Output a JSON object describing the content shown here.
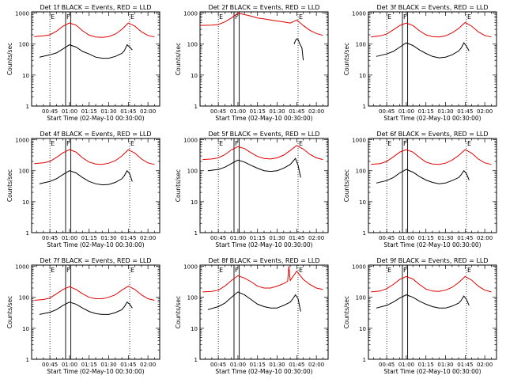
{
  "figure": {
    "background": "#ffffff",
    "colors": {
      "events": "#000000",
      "lld": "#e00000",
      "axis": "#000000"
    },
    "shared": {
      "ylabel": "Counts/sec",
      "xlabel": "Start Time (02-May-10 00:30:00)",
      "x_ticklabels": [
        "00:45",
        "01:00",
        "01:15",
        "01:30",
        "01:45",
        "02:00"
      ],
      "y_ticklabels": [
        "1",
        "10",
        "100",
        "1000"
      ],
      "markers": [
        "E",
        "F",
        "E"
      ]
    }
  },
  "chart_data": [
    {
      "type": "line",
      "title": "Det 1f BLACK = Events, RED = LLD",
      "xlabel": "Start Time (02-May-10 00:30:00)",
      "ylabel": "Counts/sec",
      "yscale": "log",
      "ylim": [
        1,
        1100
      ],
      "xlim": [
        "00:31",
        "02:09"
      ],
      "shaded_lines": {
        "dotted": [
          "00:45",
          "01:46"
        ],
        "solid": [
          "00:57",
          "01:01"
        ]
      },
      "series": [
        {
          "name": "Events",
          "color": "#000000",
          "x": [
            "00:37",
            "00:45",
            "00:50",
            "00:55",
            "01:00",
            "01:05",
            "01:10",
            "01:15",
            "01:20",
            "01:25",
            "01:30",
            "01:35",
            "01:40",
            "01:42",
            "01:44",
            "01:46",
            "01:48"
          ],
          "y": [
            38,
            45,
            52,
            70,
            95,
            80,
            58,
            48,
            38,
            35,
            35,
            40,
            50,
            62,
            95,
            80,
            65
          ]
        },
        {
          "name": "LLD",
          "color": "#e00000",
          "x": [
            "00:33",
            "00:40",
            "00:45",
            "00:50",
            "00:55",
            "01:00",
            "01:05",
            "01:10",
            "01:15",
            "01:20",
            "01:25",
            "01:30",
            "01:35",
            "01:40",
            "01:45",
            "01:50",
            "01:55",
            "02:00",
            "02:05"
          ],
          "y": [
            175,
            185,
            200,
            260,
            380,
            480,
            410,
            270,
            195,
            170,
            165,
            175,
            210,
            300,
            480,
            380,
            250,
            190,
            170
          ]
        }
      ]
    },
    {
      "type": "line",
      "title": "Det 2f BLACK = Events, RED = LLD",
      "xlabel": "Start Time (02-May-10 00:30:00)",
      "ylabel": "Counts/sec",
      "yscale": "log",
      "ylim": [
        1,
        1100
      ],
      "xlim": [
        "00:31",
        "02:09"
      ],
      "shaded_lines": {
        "dotted": [
          "00:45",
          "01:46"
        ],
        "solid": [
          "00:57",
          "01:01"
        ]
      },
      "series": [
        {
          "name": "Events",
          "color": "#000000",
          "x": [
            "01:43",
            "01:44",
            "01:45",
            "01:46",
            "01:47",
            "01:48",
            "01:49",
            "01:50"
          ],
          "y": [
            100,
            130,
            150,
            140,
            110,
            90,
            75,
            30
          ]
        },
        {
          "name": "LLD",
          "color": "#e00000",
          "x": [
            "00:31",
            "00:40",
            "00:45",
            "00:50",
            "00:55",
            "01:00",
            "01:05",
            "01:10",
            "01:15",
            "01:20",
            "01:25",
            "01:30",
            "01:35",
            "01:40",
            "01:45",
            "01:50",
            "01:55",
            "02:00",
            "02:05"
          ],
          "y": [
            400,
            410,
            430,
            520,
            700,
            1000,
            900,
            800,
            700,
            650,
            600,
            560,
            520,
            480,
            600,
            400,
            280,
            220,
            190
          ]
        }
      ]
    },
    {
      "type": "line",
      "title": "Det 3f BLACK = Events, RED = LLD",
      "xlabel": "Start Time (02-May-10 00:30:00)",
      "ylabel": "Counts/sec",
      "yscale": "log",
      "ylim": [
        1,
        1100
      ],
      "xlim": [
        "00:31",
        "02:09"
      ],
      "shaded_lines": {
        "dotted": [
          "00:45",
          "01:46"
        ],
        "solid": [
          "00:57",
          "01:01"
        ]
      },
      "series": [
        {
          "name": "Events",
          "color": "#000000",
          "x": [
            "00:37",
            "00:45",
            "00:50",
            "00:55",
            "01:00",
            "01:05",
            "01:10",
            "01:15",
            "01:20",
            "01:25",
            "01:30",
            "01:35",
            "01:40",
            "01:42",
            "01:44",
            "01:46",
            "01:48"
          ],
          "y": [
            40,
            48,
            58,
            80,
            110,
            90,
            65,
            50,
            40,
            36,
            38,
            45,
            60,
            75,
            110,
            85,
            60
          ]
        },
        {
          "name": "LLD",
          "color": "#e00000",
          "x": [
            "00:33",
            "00:40",
            "00:45",
            "00:50",
            "00:55",
            "01:00",
            "01:05",
            "01:10",
            "01:15",
            "01:20",
            "01:25",
            "01:30",
            "01:35",
            "01:40",
            "01:45",
            "01:50",
            "01:55",
            "02:00",
            "02:05"
          ],
          "y": [
            170,
            185,
            210,
            290,
            400,
            480,
            400,
            270,
            200,
            175,
            170,
            185,
            230,
            320,
            500,
            380,
            250,
            190,
            170
          ]
        }
      ]
    },
    {
      "type": "line",
      "title": "Det 4f BLACK = Events, RED = LLD",
      "xlabel": "Start Time (02-May-10 00:30:00)",
      "ylabel": "Counts/sec",
      "yscale": "log",
      "ylim": [
        1,
        1100
      ],
      "xlim": [
        "00:31",
        "02:09"
      ],
      "shaded_lines": {
        "dotted": [
          "00:45",
          "01:46"
        ],
        "solid": [
          "00:57",
          "01:01"
        ]
      },
      "series": [
        {
          "name": "Events",
          "color": "#000000",
          "x": [
            "00:37",
            "00:45",
            "00:50",
            "00:55",
            "01:00",
            "01:05",
            "01:10",
            "01:15",
            "01:20",
            "01:25",
            "01:30",
            "01:35",
            "01:40",
            "01:42",
            "01:44",
            "01:46",
            "01:48"
          ],
          "y": [
            38,
            45,
            55,
            75,
            100,
            85,
            60,
            45,
            38,
            35,
            36,
            42,
            55,
            70,
            100,
            80,
            45
          ]
        },
        {
          "name": "LLD",
          "color": "#e00000",
          "x": [
            "00:33",
            "00:40",
            "00:45",
            "00:50",
            "00:55",
            "01:00",
            "01:05",
            "01:10",
            "01:15",
            "01:20",
            "01:25",
            "01:30",
            "01:35",
            "01:40",
            "01:45",
            "01:50",
            "01:55",
            "02:00",
            "02:05"
          ],
          "y": [
            170,
            180,
            200,
            270,
            380,
            480,
            400,
            260,
            190,
            165,
            160,
            175,
            210,
            300,
            480,
            370,
            240,
            180,
            160
          ]
        }
      ]
    },
    {
      "type": "line",
      "title": "Det 5f BLACK = Events, RED = LLD",
      "xlabel": "Start Time (02-May-10 00:30:00)",
      "ylabel": "Counts/sec",
      "yscale": "log",
      "ylim": [
        1,
        1100
      ],
      "xlim": [
        "00:31",
        "02:09"
      ],
      "shaded_lines": {
        "dotted": [
          "00:45",
          "01:46"
        ],
        "solid": [
          "00:57",
          "01:01"
        ]
      },
      "series": [
        {
          "name": "Events",
          "color": "#000000",
          "x": [
            "00:37",
            "00:45",
            "00:50",
            "00:55",
            "01:00",
            "01:05",
            "01:10",
            "01:15",
            "01:20",
            "01:25",
            "01:30",
            "01:35",
            "01:40",
            "01:42",
            "01:44",
            "01:46",
            "01:48"
          ],
          "y": [
            100,
            110,
            130,
            170,
            220,
            190,
            150,
            120,
            100,
            95,
            100,
            120,
            160,
            200,
            250,
            150,
            60
          ]
        },
        {
          "name": "LLD",
          "color": "#e00000",
          "x": [
            "00:33",
            "00:40",
            "00:45",
            "00:50",
            "00:55",
            "01:00",
            "01:05",
            "01:10",
            "01:15",
            "01:20",
            "01:25",
            "01:30",
            "01:35",
            "01:40",
            "01:45",
            "01:50",
            "01:55",
            "02:00",
            "02:05"
          ],
          "y": [
            230,
            240,
            260,
            330,
            470,
            600,
            520,
            380,
            290,
            250,
            240,
            260,
            320,
            450,
            650,
            500,
            340,
            260,
            230
          ]
        }
      ]
    },
    {
      "type": "line",
      "title": "Det 6f BLACK = Events, RED = LLD",
      "xlabel": "Start Time (02-May-10 00:30:00)",
      "ylabel": "Counts/sec",
      "yscale": "log",
      "ylim": [
        1,
        1100
      ],
      "xlim": [
        "00:31",
        "02:09"
      ],
      "shaded_lines": {
        "dotted": [
          "00:45",
          "01:46"
        ],
        "solid": [
          "00:57",
          "01:01"
        ]
      },
      "series": [
        {
          "name": "Events",
          "color": "#000000",
          "x": [
            "00:37",
            "00:45",
            "00:50",
            "00:55",
            "01:00",
            "01:05",
            "01:10",
            "01:15",
            "01:20",
            "01:25",
            "01:30",
            "01:35",
            "01:40",
            "01:42",
            "01:44",
            "01:46",
            "01:48"
          ],
          "y": [
            40,
            48,
            60,
            85,
            110,
            90,
            65,
            50,
            42,
            38,
            40,
            48,
            60,
            75,
            100,
            80,
            50
          ]
        },
        {
          "name": "LLD",
          "color": "#e00000",
          "x": [
            "00:33",
            "00:40",
            "00:45",
            "00:50",
            "00:55",
            "01:00",
            "01:05",
            "01:10",
            "01:15",
            "01:20",
            "01:25",
            "01:30",
            "01:35",
            "01:40",
            "01:45",
            "01:50",
            "01:55",
            "02:00",
            "02:05"
          ],
          "y": [
            160,
            170,
            200,
            280,
            400,
            480,
            400,
            270,
            190,
            165,
            160,
            175,
            220,
            310,
            480,
            370,
            240,
            180,
            160
          ]
        }
      ]
    },
    {
      "type": "line",
      "title": "Det 7f BLACK = Events, RED = LLD",
      "xlabel": "Start Time (02-May-10 00:30:00)",
      "ylabel": "Counts/sec",
      "yscale": "log",
      "ylim": [
        1,
        1100
      ],
      "xlim": [
        "00:31",
        "02:09"
      ],
      "shaded_lines": {
        "dotted": [
          "00:45",
          "01:46"
        ],
        "solid": [
          "00:57",
          "01:01"
        ]
      },
      "series": [
        {
          "name": "Events",
          "color": "#000000",
          "x": [
            "00:37",
            "00:45",
            "00:50",
            "00:55",
            "01:00",
            "01:05",
            "01:10",
            "01:15",
            "01:20",
            "01:25",
            "01:30",
            "01:35",
            "01:40",
            "01:42",
            "01:44",
            "01:46",
            "01:48"
          ],
          "y": [
            28,
            33,
            40,
            55,
            70,
            60,
            45,
            35,
            30,
            28,
            28,
            32,
            40,
            50,
            70,
            60,
            45
          ]
        },
        {
          "name": "LLD",
          "color": "#e00000",
          "x": [
            "00:33",
            "00:40",
            "00:45",
            "00:50",
            "00:55",
            "01:00",
            "01:05",
            "01:10",
            "01:15",
            "01:20",
            "01:25",
            "01:30",
            "01:35",
            "01:40",
            "01:45",
            "01:50",
            "01:55",
            "02:00",
            "02:05"
          ],
          "y": [
            80,
            85,
            95,
            130,
            180,
            220,
            180,
            130,
            100,
            90,
            90,
            100,
            120,
            170,
            230,
            180,
            120,
            90,
            80
          ]
        }
      ]
    },
    {
      "type": "line",
      "title": "Det 8f BLACK = Events, RED = LLD",
      "xlabel": "Start Time (02-May-10 00:30:00)",
      "ylabel": "Counts/sec",
      "yscale": "log",
      "ylim": [
        1,
        1100
      ],
      "xlim": [
        "00:31",
        "02:09"
      ],
      "shaded_lines": {
        "dotted": [
          "00:45",
          "01:46"
        ],
        "solid": [
          "00:57",
          "01:01"
        ]
      },
      "series": [
        {
          "name": "Events",
          "color": "#000000",
          "x": [
            "00:37",
            "00:45",
            "00:50",
            "00:55",
            "01:00",
            "01:05",
            "01:10",
            "01:15",
            "01:20",
            "01:25",
            "01:30",
            "01:35",
            "01:40",
            "01:42",
            "01:44",
            "01:46",
            "01:48"
          ],
          "y": [
            40,
            50,
            65,
            100,
            150,
            120,
            85,
            60,
            50,
            45,
            45,
            55,
            70,
            90,
            120,
            90,
            35
          ]
        },
        {
          "name": "LLD",
          "color": "#e00000",
          "x": [
            "00:33",
            "00:40",
            "00:45",
            "00:50",
            "00:55",
            "01:00",
            "01:05",
            "01:10",
            "01:15",
            "01:20",
            "01:25",
            "01:30",
            "01:35",
            "01:38",
            "01:39",
            "01:40",
            "01:45",
            "01:50",
            "01:55",
            "02:00",
            "02:05"
          ],
          "y": [
            150,
            155,
            170,
            230,
            350,
            500,
            420,
            320,
            230,
            200,
            200,
            230,
            280,
            330,
            1000,
            350,
            700,
            380,
            260,
            200,
            180
          ]
        }
      ]
    },
    {
      "type": "line",
      "title": "Det 9f BLACK = Events, RED = LLD",
      "xlabel": "Start Time (02-May-10 00:30:00)",
      "ylabel": "Counts/sec",
      "yscale": "log",
      "ylim": [
        1,
        1100
      ],
      "xlim": [
        "00:31",
        "02:09"
      ],
      "shaded_lines": {
        "dotted": [
          "00:45",
          "01:46"
        ],
        "solid": [
          "00:57",
          "01:01"
        ]
      },
      "series": [
        {
          "name": "Events",
          "color": "#000000",
          "x": [
            "00:37",
            "00:45",
            "00:50",
            "00:55",
            "01:00",
            "01:05",
            "01:10",
            "01:15",
            "01:20",
            "01:25",
            "01:30",
            "01:35",
            "01:40",
            "01:42",
            "01:44",
            "01:46",
            "01:48"
          ],
          "y": [
            45,
            55,
            70,
            95,
            120,
            100,
            75,
            60,
            50,
            45,
            45,
            52,
            65,
            80,
            110,
            85,
            55
          ]
        },
        {
          "name": "LLD",
          "color": "#e00000",
          "x": [
            "00:33",
            "00:40",
            "00:45",
            "00:50",
            "00:55",
            "01:00",
            "01:05",
            "01:10",
            "01:15",
            "01:20",
            "01:25",
            "01:30",
            "01:35",
            "01:40",
            "01:45",
            "01:50",
            "01:55",
            "02:00",
            "02:05"
          ],
          "y": [
            150,
            160,
            190,
            260,
            380,
            470,
            390,
            260,
            185,
            160,
            155,
            170,
            210,
            300,
            470,
            360,
            230,
            170,
            150
          ]
        }
      ]
    }
  ]
}
